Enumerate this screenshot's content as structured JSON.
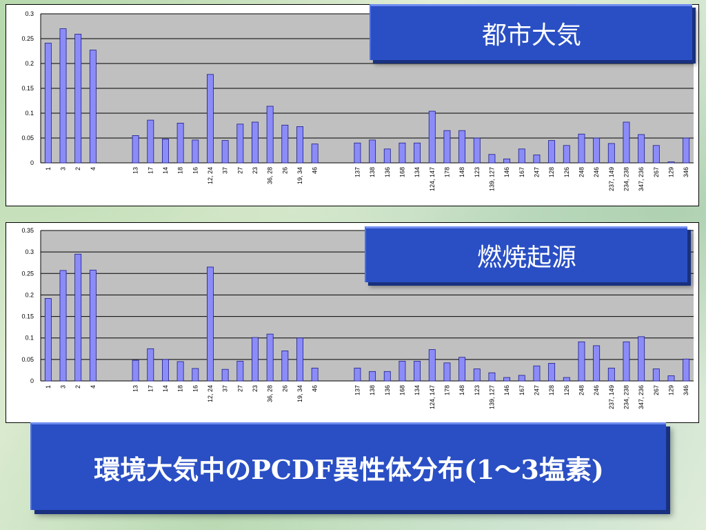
{
  "slide_title": "環境大気中のPCDF異性体分布(1～3塩素)",
  "chart_data": [
    {
      "type": "bar",
      "title": "都市大気",
      "label_box": "都市大気",
      "ylim": [
        0,
        0.3
      ],
      "yticks": [
        "0",
        "0.05",
        "0.1",
        "0.15",
        "0.2",
        "0.25",
        "0.3"
      ],
      "grid": true,
      "groups": [
        {
          "categories": [
            "1",
            "3",
            "2",
            "4"
          ],
          "values": [
            0.241,
            0.27,
            0.259,
            0.227
          ]
        },
        {
          "categories": [
            "13",
            "17",
            "14",
            "18",
            "16",
            "12, 24",
            "37",
            "27",
            "23",
            "36, 28",
            "26",
            "19, 34",
            "46"
          ],
          "values": [
            0.055,
            0.086,
            0.048,
            0.08,
            0.046,
            0.178,
            0.045,
            0.078,
            0.082,
            0.114,
            0.076,
            0.073,
            0.038
          ]
        },
        {
          "categories": [
            "137",
            "138",
            "136",
            "168",
            "134",
            "124, 147",
            "178",
            "148",
            "123",
            "139, 127",
            "146",
            "167",
            "247",
            "128",
            "126",
            "248",
            "246",
            "237, 149",
            "234, 238",
            "347, 236",
            "267",
            "129",
            "346"
          ],
          "values": [
            0.04,
            0.046,
            0.028,
            0.04,
            0.04,
            0.104,
            0.065,
            0.065,
            0.05,
            0.017,
            0.008,
            0.028,
            0.016,
            0.045,
            0.035,
            0.058,
            0.05,
            0.039,
            0.082,
            0.057,
            0.035,
            0.002,
            0.05
          ]
        }
      ]
    },
    {
      "type": "bar",
      "title": "燃焼起源",
      "label_box": "燃焼起源",
      "ylim": [
        0,
        0.35
      ],
      "yticks": [
        "0",
        "0.05",
        "0.1",
        "0.15",
        "0.2",
        "0.25",
        "0.3",
        "0.35"
      ],
      "grid": true,
      "groups": [
        {
          "categories": [
            "1",
            "3",
            "2",
            "4"
          ],
          "values": [
            0.192,
            0.257,
            0.295,
            0.258
          ]
        },
        {
          "categories": [
            "13",
            "17",
            "14",
            "18",
            "16",
            "12, 24",
            "37",
            "27",
            "23",
            "36, 28",
            "26",
            "19, 34",
            "46"
          ],
          "values": [
            0.048,
            0.075,
            0.05,
            0.045,
            0.029,
            0.265,
            0.027,
            0.046,
            0.101,
            0.109,
            0.07,
            0.1,
            0.03
          ]
        },
        {
          "categories": [
            "137",
            "138",
            "136",
            "168",
            "134",
            "124, 147",
            "178",
            "148",
            "123",
            "139, 127",
            "146",
            "167",
            "247",
            "128",
            "126",
            "248",
            "246",
            "237, 149",
            "234, 238",
            "347, 236",
            "267",
            "129",
            "346"
          ],
          "values": [
            0.03,
            0.022,
            0.022,
            0.046,
            0.046,
            0.073,
            0.042,
            0.055,
            0.028,
            0.019,
            0.008,
            0.013,
            0.035,
            0.041,
            0.008,
            0.091,
            0.082,
            0.03,
            0.091,
            0.103,
            0.028,
            0.012,
            0.051
          ]
        }
      ]
    }
  ]
}
